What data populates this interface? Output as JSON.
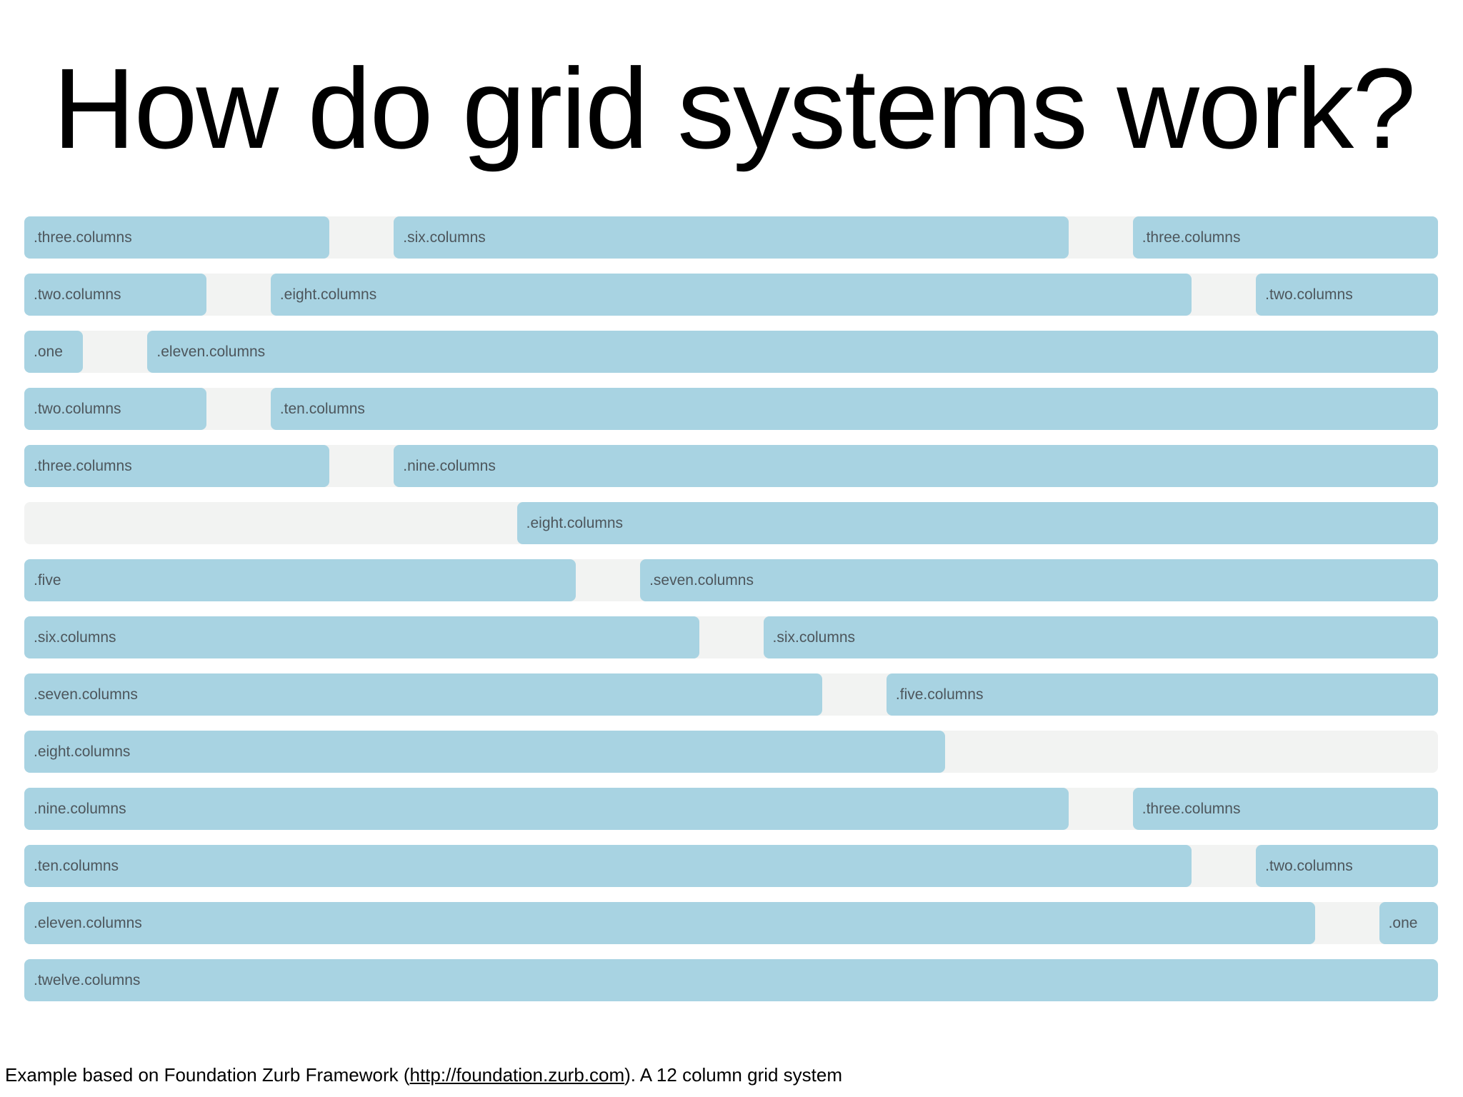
{
  "title": "How do grid systems work?",
  "colors": {
    "bar_blue": "#a8d3e2",
    "row_track_gray": "#f2f3f2",
    "label_text": "#4d565c",
    "title_text": "#000000",
    "page_background": "#ffffff"
  },
  "grid": {
    "columns": 12,
    "rows": [
      {
        "cells": [
          {
            "span": 3,
            "label": ".three.columns"
          },
          {
            "span": 6,
            "label": ".six.columns"
          },
          {
            "span": 3,
            "label": ".three.columns"
          }
        ]
      },
      {
        "cells": [
          {
            "span": 2,
            "label": ".two.columns"
          },
          {
            "span": 8,
            "label": ".eight.columns"
          },
          {
            "span": 2,
            "label": ".two.columns"
          }
        ]
      },
      {
        "cells": [
          {
            "span": 1,
            "label": ".one"
          },
          {
            "span": 11,
            "label": ".eleven.columns"
          }
        ]
      },
      {
        "cells": [
          {
            "span": 2,
            "label": ".two.columns"
          },
          {
            "span": 10,
            "label": ".ten.columns"
          }
        ]
      },
      {
        "cells": [
          {
            "span": 3,
            "label": ".three.columns"
          },
          {
            "span": 9,
            "label": ".nine.columns"
          }
        ]
      },
      {
        "cells": [
          {
            "start": 5,
            "span": 8,
            "label": ".eight.columns"
          }
        ]
      },
      {
        "cells": [
          {
            "span": 5,
            "label": ".five"
          },
          {
            "span": 7,
            "label": ".seven.columns"
          }
        ]
      },
      {
        "cells": [
          {
            "span": 6,
            "label": ".six.columns"
          },
          {
            "span": 6,
            "label": ".six.columns"
          }
        ]
      },
      {
        "cells": [
          {
            "span": 7,
            "label": ".seven.columns"
          },
          {
            "span": 5,
            "label": ".five.columns"
          }
        ]
      },
      {
        "cells": [
          {
            "span": 8,
            "label": ".eight.columns"
          }
        ]
      },
      {
        "cells": [
          {
            "span": 9,
            "label": ".nine.columns"
          },
          {
            "span": 3,
            "label": ".three.columns"
          }
        ]
      },
      {
        "cells": [
          {
            "span": 10,
            "label": ".ten.columns"
          },
          {
            "span": 2,
            "label": ".two.columns"
          }
        ]
      },
      {
        "cells": [
          {
            "span": 11,
            "label": ".eleven.columns"
          },
          {
            "span": 1,
            "label": ".one"
          }
        ]
      },
      {
        "cells": [
          {
            "span": 12,
            "label": ".twelve.columns"
          }
        ]
      }
    ]
  },
  "footer": {
    "prefix": "Example based on Foundation Zurb Framework (",
    "link": "http://foundation.zurb.com",
    "suffix": "). A 12 column grid system"
  }
}
